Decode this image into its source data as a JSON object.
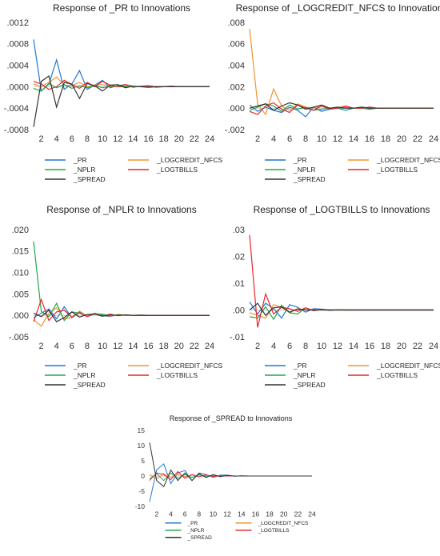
{
  "colors": {
    "_PR": "#1f77d4",
    "_LOGCREDIT_NFCS": "#f5922f",
    "_NPLR": "#21a84a",
    "_LOGTBILLS": "#e8262d",
    "_SPREAD": "#333333",
    "zero_line": "#c9d3da",
    "axis_text": "#333333"
  },
  "chart_data": [
    {
      "type": "line",
      "title": "Response of _PR to Innovations",
      "x": [
        1,
        2,
        3,
        4,
        5,
        6,
        7,
        8,
        9,
        10,
        11,
        12,
        13,
        14,
        15,
        16,
        17,
        18,
        19,
        20,
        21,
        22,
        23,
        24
      ],
      "xticks": [
        "2",
        "4",
        "6",
        "8",
        "10",
        "12",
        "14",
        "16",
        "18",
        "20",
        "22",
        "24"
      ],
      "ylim": [
        -0.0008,
        0.0012
      ],
      "yticks": [
        ".0012",
        ".0008",
        ".0004",
        ".0000",
        "-.0004",
        "-.0008"
      ],
      "series": [
        {
          "name": "_PR",
          "values": [
            0.00088,
            -8e-05,
            5e-05,
            0.0005,
            -5e-05,
            5e-05,
            0.0003,
            -5e-05,
            3e-05,
            0.00012,
            -2e-05,
            2e-05,
            4e-05,
            -1e-05,
            1e-05,
            2e-05,
            -1e-05,
            0.0,
            1e-05,
            0.0,
            0.0,
            0.0,
            0.0,
            0.0
          ]
        },
        {
          "name": "_LOGCREDIT_NFCS",
          "values": [
            5e-05,
            0.0,
            8e-05,
            0.00018,
            3e-05,
            2e-05,
            8e-05,
            0.0,
            3e-05,
            4e-05,
            0.0,
            1e-05,
            2e-05,
            0.0,
            0.0,
            1e-05,
            0.0,
            0.0,
            0.0,
            0.0,
            0.0,
            0.0,
            0.0,
            0.0
          ]
        },
        {
          "name": "_NPLR",
          "values": [
            -3e-05,
            -8e-05,
            6e-05,
            -2e-05,
            4e-05,
            -3e-05,
            2e-05,
            -2e-05,
            2e-05,
            -2e-05,
            1e-05,
            0.0,
            0.0,
            0.0,
            0.0,
            0.0,
            0.0,
            0.0,
            0.0,
            0.0,
            0.0,
            0.0,
            0.0,
            0.0
          ]
        },
        {
          "name": "_LOGTBILLS",
          "values": [
            0.0001,
            5e-05,
            -5e-05,
            0.0,
            0.00012,
            4e-05,
            -3e-05,
            8e-05,
            0.0,
            0.0001,
            3e-05,
            0.0,
            4e-05,
            1e-05,
            0.0,
            2e-05,
            0.0,
            0.0,
            1e-05,
            0.0,
            0.0,
            0.0,
            0.0,
            0.0
          ]
        },
        {
          "name": "_SPREAD",
          "values": [
            -0.00075,
            0.0001,
            0.0002,
            -0.00038,
            8e-05,
            5e-05,
            -0.00022,
            6e-05,
            2e-05,
            -8e-05,
            3e-05,
            4e-05,
            -2e-05,
            1e-05,
            0.0,
            -1e-05,
            0.0,
            0.0,
            0.0,
            0.0,
            0.0,
            0.0,
            0.0,
            0.0
          ]
        }
      ]
    },
    {
      "type": "line",
      "title": "Response of _LOGCREDIT_NFCS to Innovations",
      "x": [
        1,
        2,
        3,
        4,
        5,
        6,
        7,
        8,
        9,
        10,
        11,
        12,
        13,
        14,
        15,
        16,
        17,
        18,
        19,
        20,
        21,
        22,
        23,
        24
      ],
      "xticks": [
        "2",
        "4",
        "6",
        "8",
        "10",
        "12",
        "14",
        "16",
        "18",
        "20",
        "22",
        "24"
      ],
      "ylim": [
        -0.002,
        0.008
      ],
      "yticks": [
        ".008",
        ".006",
        ".004",
        ".002",
        ".000",
        "-.002"
      ],
      "series": [
        {
          "name": "_PR",
          "values": [
            0.0003,
            -0.0003,
            0.0001,
            -0.0002,
            -0.0004,
            0.0001,
            -0.0002,
            -0.0008,
            0.0001,
            -0.0003,
            -0.0001,
            0.0,
            -0.0002,
            0.0,
            0.0,
            -0.0001,
            0.0,
            0.0,
            0.0,
            0.0,
            0.0,
            0.0,
            0.0,
            0.0
          ]
        },
        {
          "name": "_LOGCREDIT_NFCS",
          "values": [
            0.0074,
            0.0004,
            -0.0006,
            0.0018,
            0.0002,
            -0.0002,
            0.0004,
            0.0001,
            0.0,
            0.0002,
            0.0,
            0.0,
            0.0001,
            0.0,
            0.0,
            0.0,
            0.0,
            0.0,
            0.0,
            0.0,
            0.0,
            0.0,
            0.0,
            0.0
          ]
        },
        {
          "name": "_NPLR",
          "values": [
            -0.0002,
            0.0001,
            0.0004,
            0.0002,
            -0.0003,
            0.0003,
            -0.0001,
            0.0001,
            -0.0002,
            -0.0001,
            0.0,
            0.0,
            0.0,
            0.0,
            0.0,
            0.0,
            0.0,
            0.0,
            0.0,
            0.0,
            0.0,
            0.0,
            0.0,
            0.0
          ]
        },
        {
          "name": "_LOGTBILLS",
          "values": [
            -0.0003,
            -0.0006,
            0.0002,
            0.0005,
            -0.0001,
            -0.0004,
            0.0003,
            0.0,
            -0.0002,
            0.0002,
            -0.0001,
            0.0,
            0.0002,
            0.0,
            0.0,
            0.0001,
            0.0,
            0.0,
            0.0,
            0.0,
            0.0,
            0.0,
            0.0,
            0.0
          ]
        },
        {
          "name": "_SPREAD",
          "values": [
            0.0,
            0.0002,
            0.0004,
            -0.0002,
            0.0002,
            0.0005,
            0.0003,
            -0.0001,
            0.0001,
            0.0003,
            0.0,
            0.0001,
            0.0,
            0.0,
            0.0001,
            0.0,
            0.0,
            0.0,
            0.0,
            0.0,
            0.0,
            0.0,
            0.0,
            0.0
          ]
        }
      ]
    },
    {
      "type": "line",
      "title": "Response of _NPLR to Innovations",
      "x": [
        1,
        2,
        3,
        4,
        5,
        6,
        7,
        8,
        9,
        10,
        11,
        12,
        13,
        14,
        15,
        16,
        17,
        18,
        19,
        20,
        21,
        22,
        23,
        24
      ],
      "xticks": [
        "2",
        "4",
        "6",
        "8",
        "10",
        "12",
        "14",
        "16",
        "18",
        "20",
        "22",
        "24"
      ],
      "ylim": [
        -0.005,
        0.02
      ],
      "yticks": [
        ".020",
        ".015",
        ".010",
        ".005",
        ".000",
        "-.005"
      ],
      "series": [
        {
          "name": "_PR",
          "values": [
            -0.0005,
            0.0005,
            0.0015,
            -0.0008,
            0.002,
            -0.0006,
            0.0008,
            -0.0002,
            0.0005,
            0.0,
            -0.0003,
            0.0002,
            0.0,
            0.0,
            0.0001,
            0.0,
            0.0,
            0.0,
            0.0,
            0.0,
            0.0,
            0.0,
            0.0,
            0.0
          ]
        },
        {
          "name": "_LOGCREDIT_NFCS",
          "values": [
            -0.001,
            -0.0025,
            0.0005,
            0.0018,
            -0.0008,
            -0.0005,
            0.001,
            -0.0002,
            0.0004,
            0.0003,
            -0.0002,
            0.0002,
            0.0001,
            0.0,
            0.0001,
            0.0,
            0.0,
            0.0,
            0.0,
            0.0,
            0.0,
            0.0,
            0.0,
            0.0
          ]
        },
        {
          "name": "_NPLR",
          "values": [
            0.0172,
            0.0009,
            -0.0003,
            0.0028,
            -0.0012,
            0.0008,
            0.0005,
            -0.0002,
            0.0003,
            0.0002,
            0.0,
            0.0001,
            0.0001,
            0.0,
            0.0,
            0.0,
            0.0,
            0.0,
            0.0,
            0.0,
            0.0,
            0.0,
            0.0,
            0.0
          ]
        },
        {
          "name": "_LOGTBILLS",
          "values": [
            -0.0015,
            0.0037,
            -0.0012,
            0.0008,
            0.0012,
            -0.0004,
            0.0006,
            -0.0003,
            0.0004,
            -0.0002,
            0.0003,
            -0.0001,
            0.0001,
            0.0,
            0.0,
            0.0,
            0.0,
            0.0,
            0.0,
            0.0,
            0.0,
            0.0,
            0.0,
            0.0
          ]
        },
        {
          "name": "_SPREAD",
          "values": [
            0.0005,
            -0.0003,
            0.0012,
            -0.0015,
            -0.0005,
            0.0008,
            -0.0004,
            0.0002,
            0.0003,
            -0.0002,
            0.0001,
            0.0,
            0.0001,
            0.0,
            0.0,
            0.0,
            0.0,
            0.0,
            0.0,
            0.0,
            0.0,
            0.0,
            0.0,
            0.0
          ]
        }
      ]
    },
    {
      "type": "line",
      "title": "Response of _LOGTBILLS to Innovations",
      "x": [
        1,
        2,
        3,
        4,
        5,
        6,
        7,
        8,
        9,
        10,
        11,
        12,
        13,
        14,
        15,
        16,
        17,
        18,
        19,
        20,
        21,
        22,
        23,
        24
      ],
      "xticks": [
        "2",
        "4",
        "6",
        "8",
        "10",
        "12",
        "14",
        "16",
        "18",
        "20",
        "22",
        "24"
      ],
      "ylim": [
        -0.01,
        0.03
      ],
      "yticks": [
        ".03",
        ".02",
        ".01",
        ".00",
        "-.01"
      ],
      "series": [
        {
          "name": "_PR",
          "values": [
            0.003,
            -0.0015,
            0.0025,
            0.0005,
            -0.003,
            0.002,
            0.001,
            -0.0008,
            0.0005,
            0.0003,
            -0.0002,
            0.0001,
            0.0,
            0.0,
            0.0,
            0.0,
            0.0,
            0.0,
            0.0,
            0.0,
            0.0,
            0.0,
            0.0,
            0.0
          ]
        },
        {
          "name": "_LOGCREDIT_NFCS",
          "values": [
            -0.001,
            -0.002,
            -0.003,
            0.002,
            0.001,
            -0.001,
            0.0005,
            0.0,
            0.0002,
            0.0,
            0.0,
            0.0,
            0.0,
            0.0,
            0.0,
            0.0,
            0.0,
            0.0,
            0.0,
            0.0,
            0.0,
            0.0,
            0.0,
            0.0
          ]
        },
        {
          "name": "_NPLR",
          "values": [
            -0.0025,
            -0.003,
            0.0012,
            -0.0035,
            0.0018,
            -0.001,
            -0.0015,
            0.0008,
            -0.0002,
            0.0002,
            0.0,
            0.0,
            0.0,
            0.0,
            0.0,
            0.0,
            0.0,
            0.0,
            0.0,
            0.0,
            0.0,
            0.0,
            0.0,
            0.0
          ]
        },
        {
          "name": "_LOGTBILLS",
          "values": [
            0.028,
            -0.0065,
            0.006,
            -0.0015,
            0.001,
            0.0005,
            -0.0005,
            0.0008,
            -0.0003,
            0.0003,
            0.0,
            0.0001,
            0.0,
            0.0,
            0.0,
            0.0,
            0.0,
            0.0,
            0.0,
            0.0,
            0.0,
            0.0,
            0.0,
            0.0
          ]
        },
        {
          "name": "_SPREAD",
          "values": [
            0.0,
            0.0025,
            -0.002,
            0.0008,
            0.0012,
            -0.0008,
            0.0004,
            0.0,
            0.0,
            0.0,
            0.0,
            0.0,
            0.0,
            0.0,
            0.0,
            0.0,
            0.0,
            0.0,
            0.0,
            0.0,
            0.0,
            0.0,
            0.0,
            0.0
          ]
        }
      ]
    },
    {
      "type": "line",
      "title": "Response of _SPREAD to Innovations",
      "x": [
        1,
        2,
        3,
        4,
        5,
        6,
        7,
        8,
        9,
        10,
        11,
        12,
        13,
        14,
        15,
        16,
        17,
        18,
        19,
        20,
        21,
        22,
        23,
        24
      ],
      "xticks": [
        "2",
        "4",
        "6",
        "8",
        "10",
        "12",
        "14",
        "16",
        "18",
        "20",
        "22",
        "24"
      ],
      "ylim": [
        -10,
        15
      ],
      "yticks": [
        "15",
        "10",
        "5",
        "0",
        "-5",
        "-10"
      ],
      "series": [
        {
          "name": "_PR",
          "values": [
            -8.5,
            2.0,
            4.0,
            -2.5,
            1.0,
            1.8,
            -1.5,
            1.0,
            0.5,
            -0.5,
            0.3,
            0.3,
            -0.1,
            0.1,
            0.0,
            0.0,
            0.0,
            0.0,
            0.0,
            0.0,
            0.0,
            0.0,
            0.0,
            0.0
          ]
        },
        {
          "name": "_LOGCREDIT_NFCS",
          "values": [
            0.5,
            -1.0,
            0.8,
            -0.5,
            0.5,
            -0.3,
            0.4,
            -0.2,
            0.2,
            0.1,
            0.0,
            0.0,
            0.0,
            0.0,
            0.0,
            0.0,
            0.0,
            0.0,
            0.0,
            0.0,
            0.0,
            0.0,
            0.0,
            0.0
          ]
        },
        {
          "name": "_NPLR",
          "values": [
            -1.0,
            0.8,
            -1.5,
            1.0,
            -0.8,
            0.5,
            -0.5,
            0.4,
            -0.2,
            0.2,
            0.0,
            0.0,
            0.0,
            0.0,
            0.0,
            0.0,
            0.0,
            0.0,
            0.0,
            0.0,
            0.0,
            0.0,
            0.0,
            0.0
          ]
        },
        {
          "name": "_LOGTBILLS",
          "values": [
            -1.5,
            1.0,
            0.5,
            -1.2,
            1.5,
            -0.8,
            0.5,
            -0.3,
            0.4,
            -0.2,
            0.1,
            0.0,
            0.0,
            0.0,
            0.0,
            0.0,
            0.0,
            0.0,
            0.0,
            0.0,
            0.0,
            0.0,
            0.0,
            0.0
          ]
        },
        {
          "name": "_SPREAD",
          "values": [
            11.0,
            -1.5,
            -3.5,
            2.0,
            -1.5,
            1.0,
            -1.5,
            0.8,
            -0.5,
            0.5,
            -0.2,
            0.2,
            0.0,
            0.0,
            0.0,
            0.0,
            0.0,
            0.0,
            0.0,
            0.0,
            0.0,
            0.0,
            0.0,
            0.0
          ]
        }
      ]
    }
  ]
}
